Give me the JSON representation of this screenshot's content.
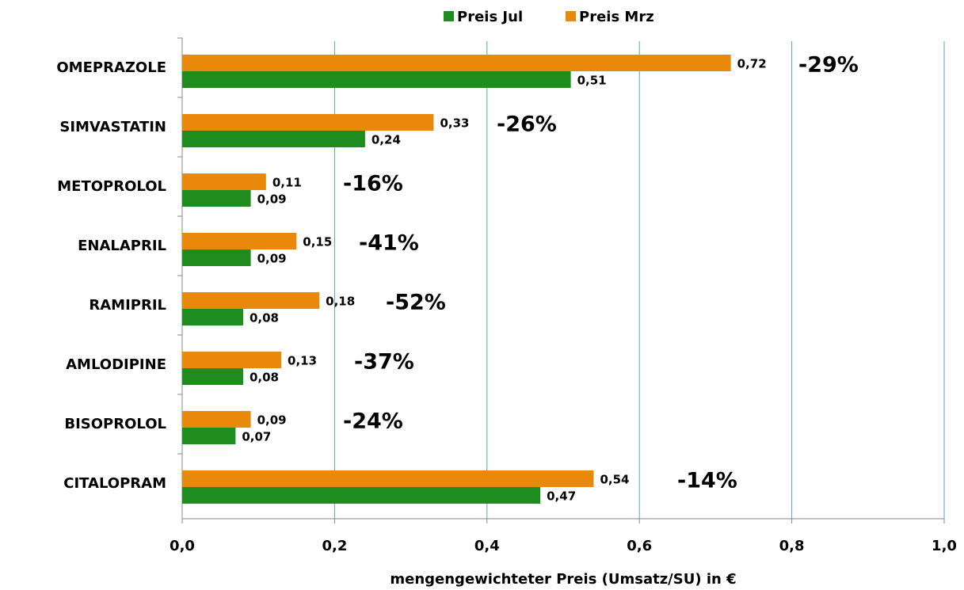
{
  "chart_data": {
    "type": "barh",
    "xlabel": "mengengewichteter Preis (Umsatz/SU) in €",
    "categories": [
      "OMEPRAZOLE",
      "SIMVASTATIN",
      "METOPROLOL",
      "ENALAPRIL",
      "RAMIPRIL",
      "AMLODIPINE",
      "BISOPROLOL",
      "CITALOPRAM"
    ],
    "series": [
      {
        "name": "Preis Jul",
        "color": "#1e8c1e",
        "values": [
          0.51,
          0.24,
          0.09,
          0.09,
          0.08,
          0.08,
          0.07,
          0.47
        ],
        "value_labels": [
          "0,51",
          "0,24",
          "0,09",
          "0,09",
          "0,08",
          "0,08",
          "0,07",
          "0,47"
        ]
      },
      {
        "name": "Preis Mrz",
        "color": "#e8890c",
        "values": [
          0.72,
          0.33,
          0.11,
          0.15,
          0.18,
          0.13,
          0.09,
          0.54
        ],
        "value_labels": [
          "0,72",
          "0,33",
          "0,11",
          "0,15",
          "0,18",
          "0,13",
          "0,09",
          "0,54"
        ]
      }
    ],
    "annotations": [
      "-29%",
      "-26%",
      "-16%",
      "-41%",
      "-52%",
      "-37%",
      "-24%",
      "-14%"
    ],
    "annotation_color": "#8b1a2e",
    "xlim": [
      0,
      1
    ],
    "xticks": [
      {
        "value": 0,
        "label": "0,0"
      },
      {
        "value": 0.2,
        "label": "0,2"
      },
      {
        "value": 0.4,
        "label": "0,4"
      },
      {
        "value": 0.6,
        "label": "0,6"
      },
      {
        "value": 0.8,
        "label": "0,8"
      },
      {
        "value": 1,
        "label": "1,0"
      }
    ],
    "grid": true,
    "legend": "top"
  }
}
